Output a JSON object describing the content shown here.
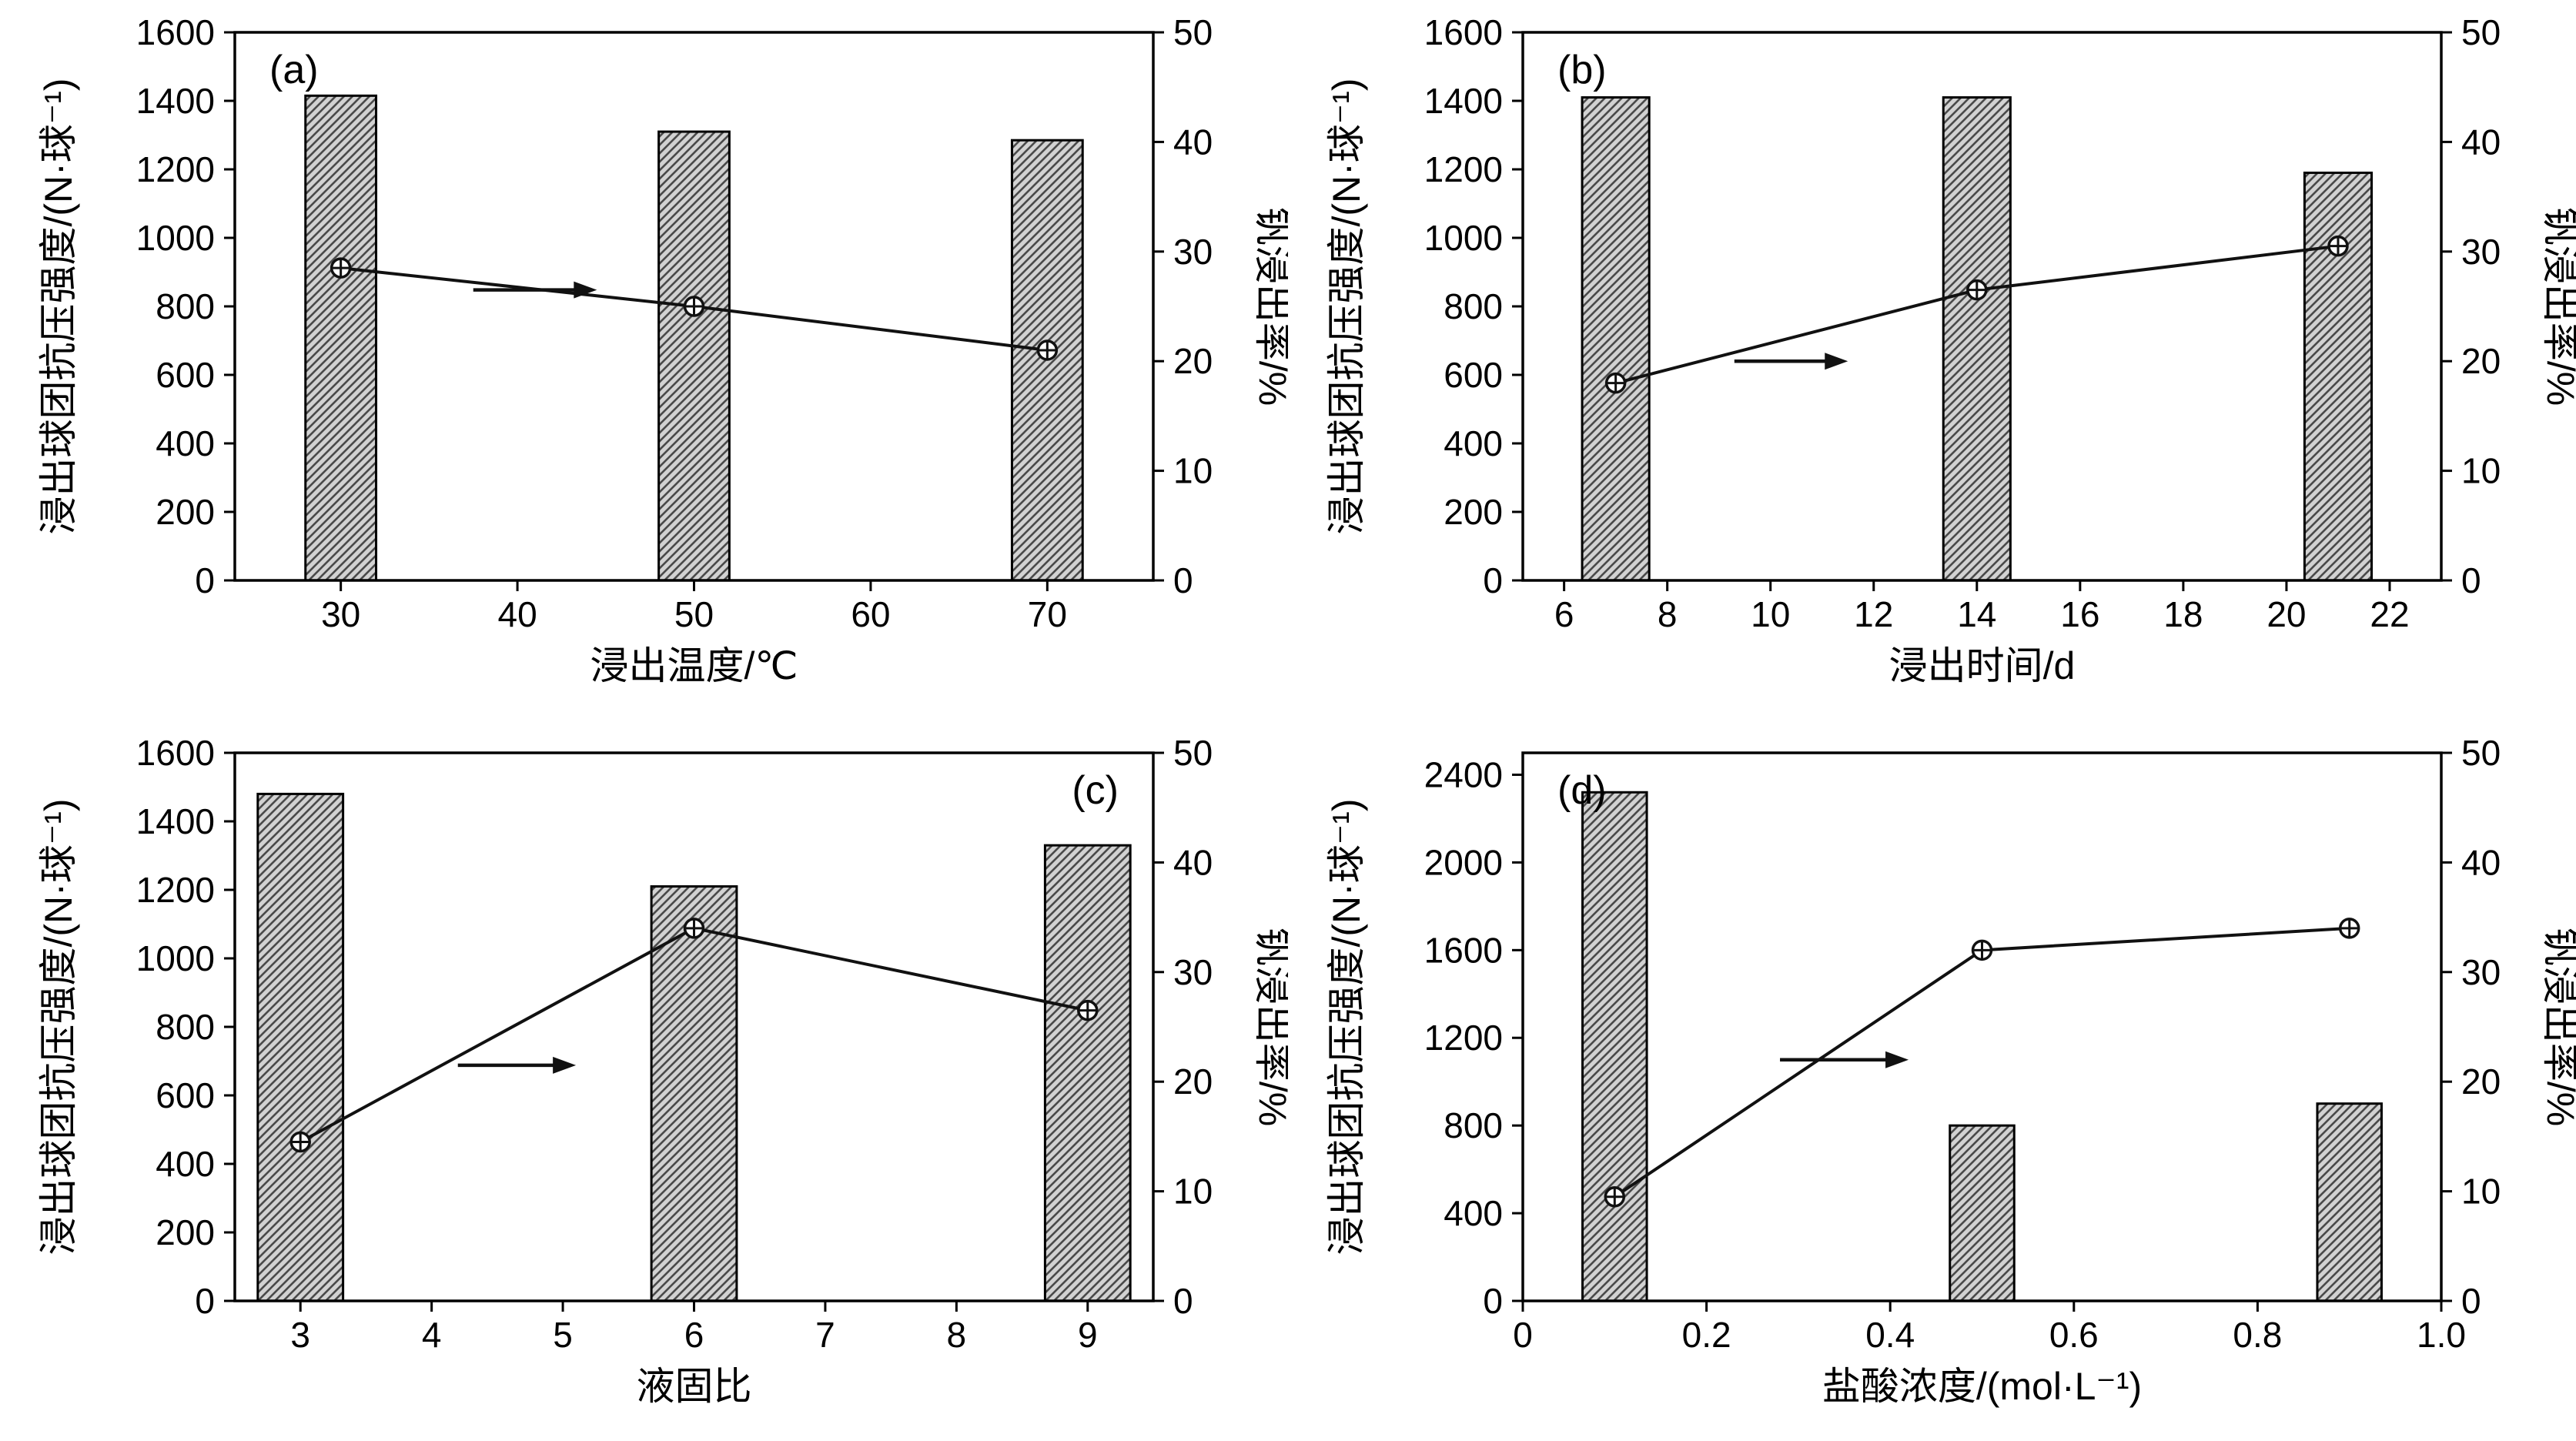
{
  "figure": {
    "colors": {
      "background": "#ffffff",
      "bar_fill": "#d2d2d2",
      "hatch": "#4a4a4a",
      "bar_edge": "#000000",
      "line": "#111111",
      "axis": "#000000",
      "text": "#000000"
    }
  },
  "chart_data": [
    {
      "id": "a",
      "type": "bar+line",
      "panel_label": "(a)",
      "panel_label_pos": "tl",
      "x_axis": {
        "label": "浸出温度/℃",
        "range": [
          24,
          76
        ],
        "tick_values": [
          30,
          40,
          50,
          60,
          70
        ],
        "tick_labels": [
          "30",
          "40",
          "50",
          "60",
          "70"
        ]
      },
      "y_left": {
        "label": "浸出球团抗压强度/(N·球⁻¹)",
        "range": [
          0,
          1600
        ],
        "tick_values": [
          0,
          200,
          400,
          600,
          800,
          1000,
          1200,
          1400,
          1600
        ],
        "tick_labels": [
          "0",
          "200",
          "400",
          "600",
          "800",
          "1000",
          "1200",
          "1400",
          "1600"
        ]
      },
      "y_right": {
        "label": "钒浸出率/%",
        "range": [
          0,
          50
        ],
        "tick_values": [
          0,
          10,
          20,
          30,
          40,
          50
        ],
        "tick_labels": [
          "0",
          "10",
          "20",
          "30",
          "40",
          "50"
        ]
      },
      "bars": {
        "series": "浸出球团抗压强度",
        "x": [
          30,
          50,
          70
        ],
        "values": [
          1415,
          1310,
          1285
        ],
        "width": 4
      },
      "line": {
        "series": "钒浸出率",
        "x": [
          30,
          50,
          70
        ],
        "values": [
          28.5,
          25,
          21
        ]
      },
      "arrow": {
        "x1": 37.5,
        "x2": 44.5,
        "y": 26.5
      }
    },
    {
      "id": "b",
      "type": "bar+line",
      "panel_label": "(b)",
      "panel_label_pos": "tl",
      "x_axis": {
        "label": "浸出时间/d",
        "range": [
          5.2,
          23
        ],
        "tick_values": [
          6,
          8,
          10,
          12,
          14,
          16,
          18,
          20,
          22
        ],
        "tick_labels": [
          "6",
          "8",
          "10",
          "12",
          "14",
          "16",
          "18",
          "20",
          "22"
        ]
      },
      "y_left": {
        "label": "浸出球团抗压强度/(N·球⁻¹)",
        "range": [
          0,
          1600
        ],
        "tick_values": [
          0,
          200,
          400,
          600,
          800,
          1000,
          1200,
          1400,
          1600
        ],
        "tick_labels": [
          "0",
          "200",
          "400",
          "600",
          "800",
          "1000",
          "1200",
          "1400",
          "1600"
        ]
      },
      "y_right": {
        "label": "钒浸出率/%",
        "range": [
          0,
          50
        ],
        "tick_values": [
          0,
          10,
          20,
          30,
          40,
          50
        ],
        "tick_labels": [
          "0",
          "10",
          "20",
          "30",
          "40",
          "50"
        ]
      },
      "bars": {
        "series": "浸出球团抗压强度",
        "x": [
          7,
          14,
          21
        ],
        "values": [
          1410,
          1410,
          1190
        ],
        "width": 1.3
      },
      "line": {
        "series": "钒浸出率",
        "x": [
          7,
          14,
          21
        ],
        "values": [
          18,
          26.5,
          30.5
        ]
      },
      "arrow": {
        "x1": 9.3,
        "x2": 11.5,
        "y": 20
      }
    },
    {
      "id": "c",
      "type": "bar+line",
      "panel_label": "(c)",
      "panel_label_pos": "tr",
      "x_axis": {
        "label": "液固比",
        "range": [
          2.5,
          9.5
        ],
        "tick_values": [
          3,
          4,
          5,
          6,
          7,
          8,
          9
        ],
        "tick_labels": [
          "3",
          "4",
          "5",
          "6",
          "7",
          "8",
          "9"
        ]
      },
      "y_left": {
        "label": "浸出球团抗压强度/(N·球⁻¹)",
        "range": [
          0,
          1600
        ],
        "tick_values": [
          0,
          200,
          400,
          600,
          800,
          1000,
          1200,
          1400,
          1600
        ],
        "tick_labels": [
          "0",
          "200",
          "400",
          "600",
          "800",
          "1000",
          "1200",
          "1400",
          "1600"
        ]
      },
      "y_right": {
        "label": "钒浸出率/%",
        "range": [
          0,
          50
        ],
        "tick_values": [
          0,
          10,
          20,
          30,
          40,
          50
        ],
        "tick_labels": [
          "0",
          "10",
          "20",
          "30",
          "40",
          "50"
        ]
      },
      "bars": {
        "series": "浸出球团抗压强度",
        "x": [
          3,
          6,
          9
        ],
        "values": [
          1480,
          1210,
          1330
        ],
        "width": 0.65
      },
      "line": {
        "series": "钒浸出率",
        "x": [
          3,
          6,
          9
        ],
        "values": [
          14.5,
          34,
          26.5
        ]
      },
      "arrow": {
        "x1": 4.2,
        "x2": 5.1,
        "y": 21.5
      }
    },
    {
      "id": "d",
      "type": "bar+line",
      "panel_label": "(d)",
      "panel_label_pos": "tl",
      "x_axis": {
        "label": "盐酸浓度/(mol·L⁻¹)",
        "range": [
          0,
          1.0
        ],
        "tick_values": [
          0,
          0.2,
          0.4,
          0.6,
          0.8,
          1.0
        ],
        "tick_labels": [
          "0",
          "0.2",
          "0.4",
          "0.6",
          "0.8",
          "1.0"
        ]
      },
      "y_left": {
        "label": "浸出球团抗压强度/(N·球⁻¹)",
        "range": [
          0,
          2500
        ],
        "tick_values": [
          0,
          400,
          800,
          1200,
          1600,
          2000,
          2400
        ],
        "tick_labels": [
          "0",
          "400",
          "800",
          "1200",
          "1600",
          "2000",
          "2400"
        ]
      },
      "y_right": {
        "label": "钒浸出率/%",
        "range": [
          0,
          50
        ],
        "tick_values": [
          0,
          10,
          20,
          30,
          40,
          50
        ],
        "tick_labels": [
          "0",
          "10",
          "20",
          "30",
          "40",
          "50"
        ]
      },
      "bars": {
        "series": "浸出球团抗压强度",
        "x": [
          0.1,
          0.5,
          0.9
        ],
        "values": [
          2320,
          800,
          900
        ],
        "width": 0.07
      },
      "line": {
        "series": "钒浸出率",
        "x": [
          0.1,
          0.5,
          0.9
        ],
        "values": [
          9.5,
          32,
          34
        ]
      },
      "arrow": {
        "x1": 0.28,
        "x2": 0.42,
        "y": 22
      }
    }
  ]
}
